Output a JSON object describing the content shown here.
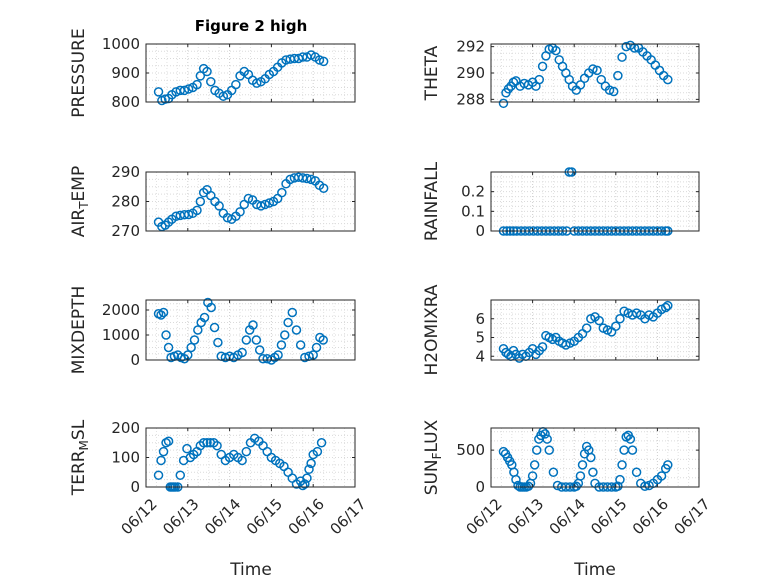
{
  "title": "Figure 2 high",
  "xlabel": "Time",
  "x_tick_labels": [
    "06/12",
    "06/13",
    "06/14",
    "06/15",
    "06/16",
    "06/17"
  ],
  "marker_color": "#0072BD",
  "chart_data": [
    {
      "type": "scatter",
      "ylabel": "PRESSURE",
      "ylim": [
        800,
        1000
      ],
      "yticks": [
        800,
        900,
        1000
      ],
      "grid": true,
      "x": [
        0.3,
        0.38,
        0.46,
        0.54,
        0.62,
        0.72,
        0.82,
        0.92,
        1.02,
        1.12,
        1.22,
        1.3,
        1.38,
        1.46,
        1.55,
        1.65,
        1.75,
        1.85,
        1.95,
        2.05,
        2.15,
        2.25,
        2.35,
        2.45,
        2.55,
        2.65,
        2.75,
        2.85,
        2.95,
        3.05,
        3.15,
        3.25,
        3.35,
        3.45,
        3.55,
        3.65,
        3.75,
        3.85,
        3.95,
        4.05,
        4.15,
        4.25
      ],
      "y": [
        835,
        805,
        810,
        812,
        825,
        835,
        840,
        840,
        845,
        850,
        860,
        890,
        915,
        905,
        870,
        840,
        830,
        820,
        825,
        840,
        860,
        890,
        905,
        895,
        875,
        865,
        870,
        880,
        895,
        905,
        920,
        935,
        945,
        948,
        950,
        950,
        955,
        955,
        962,
        955,
        945,
        940
      ]
    },
    {
      "type": "scatter",
      "ylabel": "THETA",
      "ylim": [
        287.8,
        292.2
      ],
      "yticks": [
        288,
        290,
        292
      ],
      "grid": true,
      "x": [
        0.3,
        0.36,
        0.42,
        0.48,
        0.54,
        0.6,
        0.7,
        0.8,
        0.9,
        1.0,
        1.08,
        1.16,
        1.24,
        1.32,
        1.4,
        1.48,
        1.56,
        1.64,
        1.72,
        1.8,
        1.88,
        1.96,
        2.05,
        2.15,
        2.25,
        2.35,
        2.45,
        2.55,
        2.65,
        2.75,
        2.85,
        2.95,
        3.05,
        3.15,
        3.25,
        3.35,
        3.45,
        3.55,
        3.65,
        3.75,
        3.85,
        3.95,
        4.05,
        4.15,
        4.25
      ],
      "y": [
        287.7,
        288.5,
        288.8,
        289.0,
        289.3,
        289.4,
        289.0,
        289.2,
        289.1,
        289.3,
        289.0,
        289.5,
        290.5,
        291.3,
        291.8,
        291.9,
        291.7,
        291.0,
        290.5,
        290.0,
        289.5,
        289.0,
        288.7,
        289.1,
        289.6,
        290.0,
        290.3,
        290.2,
        289.5,
        289.0,
        288.7,
        288.6,
        289.8,
        291.2,
        292.0,
        292.1,
        291.9,
        291.9,
        291.6,
        291.3,
        291.0,
        290.6,
        290.2,
        289.8,
        289.5
      ]
    },
    {
      "type": "scatter",
      "ylabel": "AIR_TEMP",
      "ylim": [
        270,
        290
      ],
      "yticks": [
        270,
        280,
        290
      ],
      "grid": true,
      "x": [
        0.3,
        0.38,
        0.46,
        0.54,
        0.62,
        0.72,
        0.82,
        0.92,
        1.02,
        1.12,
        1.22,
        1.3,
        1.38,
        1.46,
        1.55,
        1.65,
        1.75,
        1.85,
        1.95,
        2.05,
        2.15,
        2.25,
        2.35,
        2.45,
        2.55,
        2.65,
        2.75,
        2.85,
        2.95,
        3.05,
        3.15,
        3.25,
        3.35,
        3.45,
        3.55,
        3.65,
        3.75,
        3.85,
        3.95,
        4.05,
        4.15,
        4.25
      ],
      "y": [
        273,
        271.5,
        272,
        273,
        274,
        275,
        275.3,
        275.5,
        275.6,
        276,
        277,
        280,
        283,
        284,
        282,
        280,
        278.5,
        276,
        274.5,
        274,
        275,
        276.5,
        279,
        281,
        280.5,
        279,
        278.5,
        279,
        279.5,
        280,
        281,
        283,
        286,
        287.5,
        288,
        288.2,
        288,
        287.8,
        287.5,
        287,
        285.5,
        284.5
      ]
    },
    {
      "type": "scatter",
      "ylabel": "RAINFALL",
      "ylim": [
        0,
        0.3
      ],
      "yticks": [
        0,
        0.1,
        0.2
      ],
      "grid": true,
      "x": [
        0.3,
        0.38,
        0.46,
        0.54,
        0.62,
        0.72,
        0.82,
        0.92,
        1.02,
        1.12,
        1.22,
        1.32,
        1.42,
        1.52,
        1.62,
        1.72,
        1.82,
        1.88,
        1.94,
        2.0,
        2.1,
        2.2,
        2.3,
        2.4,
        2.5,
        2.6,
        2.7,
        2.8,
        2.9,
        3.0,
        3.1,
        3.2,
        3.3,
        3.4,
        3.5,
        3.6,
        3.7,
        3.8,
        3.9,
        4.0,
        4.1,
        4.2,
        4.25
      ],
      "y": [
        0,
        0,
        0,
        0,
        0,
        0,
        0,
        0,
        0,
        0,
        0,
        0,
        0,
        0,
        0,
        0,
        0,
        0.3,
        0.3,
        0,
        0,
        0,
        0,
        0,
        0,
        0,
        0,
        0,
        0,
        0,
        0,
        0,
        0,
        0,
        0,
        0,
        0,
        0,
        0,
        0,
        0,
        0,
        0
      ]
    },
    {
      "type": "scatter",
      "ylabel": "MIXDEPTH",
      "ylim": [
        0,
        2400
      ],
      "yticks": [
        0,
        1000,
        2000
      ],
      "grid": true,
      "x": [
        0.3,
        0.36,
        0.42,
        0.48,
        0.54,
        0.6,
        0.68,
        0.76,
        0.84,
        0.92,
        1.0,
        1.08,
        1.16,
        1.24,
        1.32,
        1.4,
        1.48,
        1.56,
        1.64,
        1.72,
        1.8,
        1.9,
        2.0,
        2.1,
        2.2,
        2.3,
        2.4,
        2.48,
        2.56,
        2.64,
        2.72,
        2.8,
        2.9,
        3.0,
        3.08,
        3.16,
        3.24,
        3.32,
        3.4,
        3.5,
        3.6,
        3.7,
        3.8,
        3.9,
        4.0,
        4.08,
        4.16,
        4.24
      ],
      "y": [
        1850,
        1800,
        1900,
        1000,
        500,
        100,
        150,
        200,
        100,
        50,
        200,
        500,
        800,
        1200,
        1500,
        1700,
        2300,
        2100,
        1300,
        700,
        150,
        100,
        150,
        100,
        200,
        300,
        800,
        1200,
        1400,
        800,
        400,
        50,
        50,
        0,
        100,
        200,
        600,
        1000,
        1500,
        1900,
        1200,
        600,
        100,
        150,
        200,
        500,
        900,
        800
      ]
    },
    {
      "type": "scatter",
      "ylabel": "H2OMIXRA",
      "ylim": [
        3.8,
        7
      ],
      "yticks": [
        4,
        5,
        6
      ],
      "grid": true,
      "x": [
        0.3,
        0.36,
        0.42,
        0.48,
        0.54,
        0.6,
        0.68,
        0.76,
        0.84,
        0.92,
        1.0,
        1.08,
        1.16,
        1.24,
        1.32,
        1.4,
        1.48,
        1.56,
        1.64,
        1.72,
        1.8,
        1.9,
        2.0,
        2.1,
        2.2,
        2.3,
        2.4,
        2.5,
        2.6,
        2.7,
        2.8,
        2.9,
        3.0,
        3.1,
        3.2,
        3.3,
        3.4,
        3.5,
        3.6,
        3.7,
        3.8,
        3.9,
        4.0,
        4.1,
        4.2,
        4.25
      ],
      "y": [
        4.4,
        4.2,
        4.1,
        4.0,
        4.3,
        4.1,
        3.9,
        4.1,
        4.0,
        4.2,
        4.4,
        4.1,
        4.3,
        4.5,
        5.1,
        5.0,
        4.9,
        5.0,
        4.8,
        4.7,
        4.6,
        4.7,
        4.8,
        5.0,
        5.2,
        5.5,
        6.0,
        6.1,
        5.9,
        5.5,
        5.4,
        5.3,
        5.6,
        6.0,
        6.4,
        6.3,
        6.2,
        6.3,
        6.2,
        6.0,
        6.2,
        6.1,
        6.3,
        6.5,
        6.6,
        6.7
      ]
    },
    {
      "type": "scatter",
      "ylabel": "TERR_MSL",
      "ylim": [
        0,
        200
      ],
      "yticks": [
        0,
        100,
        200
      ],
      "grid": true,
      "x": [
        0.3,
        0.36,
        0.42,
        0.48,
        0.54,
        0.58,
        0.62,
        0.66,
        0.7,
        0.76,
        0.82,
        0.9,
        0.98,
        1.06,
        1.14,
        1.22,
        1.3,
        1.38,
        1.46,
        1.54,
        1.62,
        1.7,
        1.8,
        1.9,
        2.0,
        2.1,
        2.2,
        2.3,
        2.4,
        2.5,
        2.6,
        2.7,
        2.8,
        2.9,
        3.0,
        3.1,
        3.2,
        3.3,
        3.4,
        3.5,
        3.6,
        3.7,
        3.75,
        3.8,
        3.85,
        3.9,
        3.95,
        4.0,
        4.1,
        4.2
      ],
      "y": [
        40,
        90,
        120,
        150,
        155,
        0,
        0,
        0,
        0,
        0,
        40,
        90,
        130,
        100,
        110,
        120,
        140,
        150,
        150,
        150,
        150,
        140,
        110,
        90,
        100,
        110,
        100,
        90,
        120,
        150,
        165,
        155,
        140,
        120,
        100,
        90,
        80,
        70,
        50,
        30,
        10,
        20,
        5,
        10,
        30,
        60,
        80,
        110,
        120,
        150
      ]
    },
    {
      "type": "scatter",
      "ylabel": "SUN_FLUX",
      "ylim": [
        0,
        800
      ],
      "yticks": [
        0,
        500
      ],
      "grid": true,
      "x": [
        0.3,
        0.35,
        0.4,
        0.45,
        0.5,
        0.55,
        0.6,
        0.65,
        0.7,
        0.75,
        0.8,
        0.85,
        0.9,
        0.95,
        1.0,
        1.05,
        1.1,
        1.15,
        1.2,
        1.25,
        1.3,
        1.35,
        1.4,
        1.5,
        1.6,
        1.7,
        1.8,
        1.9,
        2.0,
        2.05,
        2.1,
        2.15,
        2.2,
        2.25,
        2.3,
        2.35,
        2.4,
        2.45,
        2.5,
        2.6,
        2.7,
        2.8,
        2.9,
        3.0,
        3.05,
        3.1,
        3.15,
        3.2,
        3.25,
        3.3,
        3.35,
        3.4,
        3.5,
        3.6,
        3.7,
        3.8,
        3.9,
        4.0,
        4.1,
        4.2,
        4.25
      ],
      "y": [
        480,
        450,
        400,
        350,
        300,
        200,
        100,
        20,
        0,
        0,
        0,
        0,
        10,
        50,
        150,
        300,
        500,
        650,
        700,
        750,
        720,
        650,
        500,
        200,
        20,
        0,
        0,
        0,
        0,
        10,
        50,
        150,
        300,
        450,
        550,
        500,
        400,
        200,
        50,
        0,
        0,
        0,
        0,
        0,
        10,
        100,
        300,
        500,
        680,
        700,
        650,
        500,
        200,
        50,
        10,
        20,
        50,
        100,
        150,
        250,
        300
      ]
    }
  ]
}
